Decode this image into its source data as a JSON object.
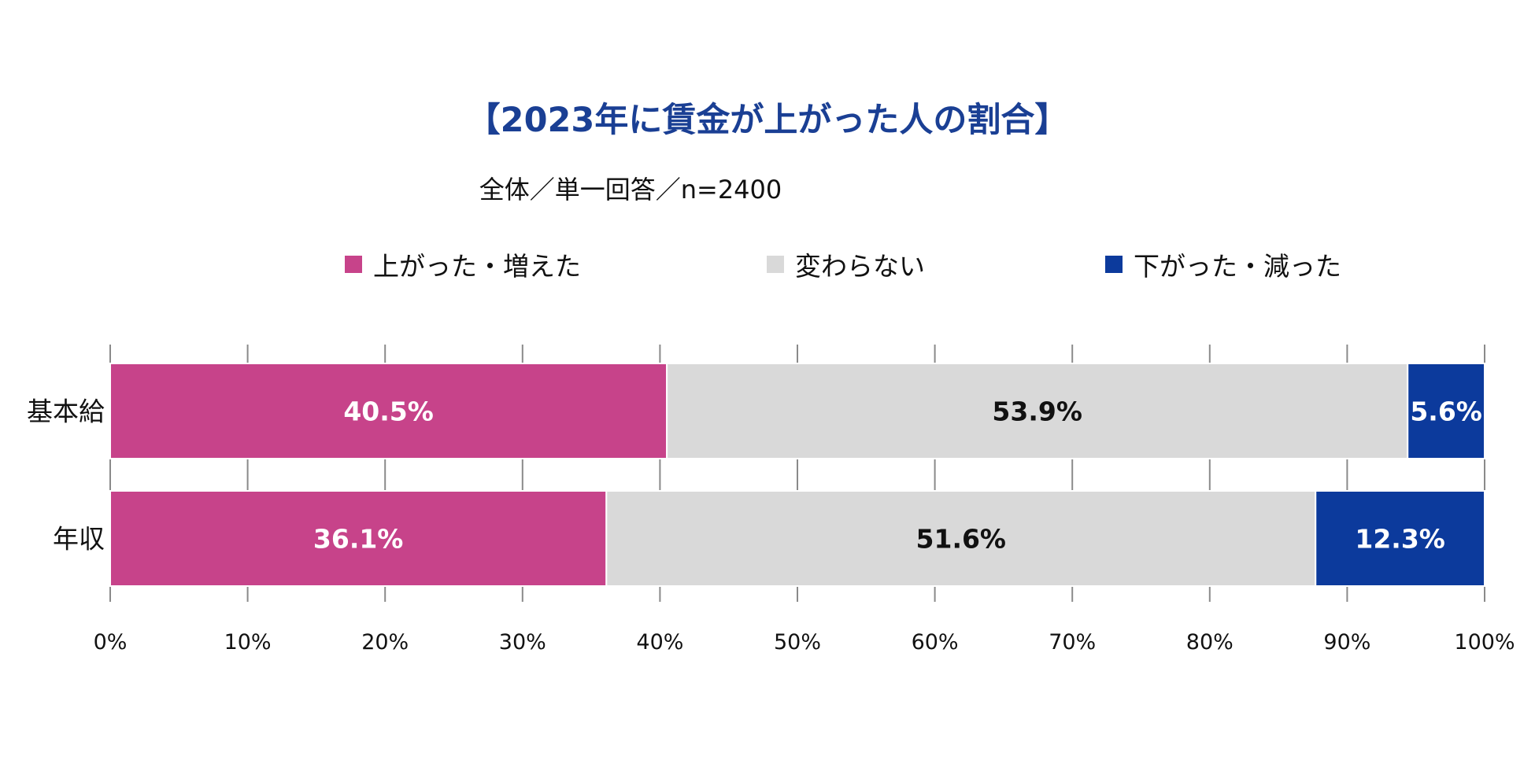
{
  "chart_data": {
    "type": "bar",
    "orientation": "horizontal",
    "stacked": true,
    "title": "【2023年に賃金が上がった人の割合】",
    "subtitle": "全体／単一回答／n=2400",
    "categories": [
      "基本給",
      "年収"
    ],
    "series": [
      {
        "name": "上がった・増えた",
        "color": "#c7438a",
        "label_color": "#ffffff",
        "values": [
          40.5,
          36.1
        ],
        "labels": [
          "40.5%",
          "36.1%"
        ]
      },
      {
        "name": "変わらない",
        "color": "#d9d9d9",
        "label_color": "#111111",
        "values": [
          53.9,
          51.6
        ],
        "labels": [
          "53.9%",
          "51.6%"
        ]
      },
      {
        "name": "下がった・減った",
        "color": "#0c3a9c",
        "label_color": "#ffffff",
        "values": [
          5.6,
          12.3
        ],
        "labels": [
          "5.6%",
          "12.3%"
        ]
      }
    ],
    "xlim": [
      0,
      100
    ],
    "x_ticks": [
      0,
      10,
      20,
      30,
      40,
      50,
      60,
      70,
      80,
      90,
      100
    ],
    "x_tick_labels": [
      "0%",
      "10%",
      "20%",
      "30%",
      "40%",
      "50%",
      "60%",
      "70%",
      "80%",
      "90%",
      "100%"
    ],
    "legend_position": "top-center",
    "grid": false
  }
}
